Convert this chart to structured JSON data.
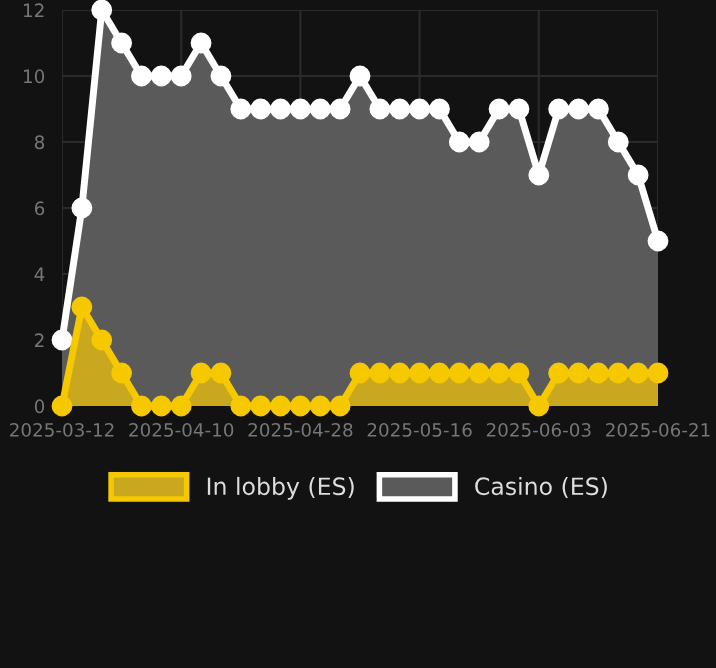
{
  "chart_data": {
    "type": "area",
    "categories": [
      "2025-03-12",
      null,
      null,
      null,
      null,
      null,
      "2025-04-10",
      null,
      null,
      null,
      null,
      null,
      "2025-04-28",
      null,
      null,
      null,
      null,
      null,
      "2025-05-16",
      null,
      null,
      null,
      null,
      null,
      "2025-06-03",
      null,
      null,
      null,
      null,
      null,
      "2025-06-21"
    ],
    "series": [
      {
        "name": "Casino (ES)",
        "color": "#ffffff",
        "values": [
          2,
          6,
          12,
          11,
          10,
          10,
          10,
          11,
          10,
          9,
          9,
          9,
          9,
          9,
          9,
          10,
          9,
          9,
          9,
          9,
          8,
          8,
          9,
          9,
          7,
          9,
          9,
          9,
          8,
          7,
          5
        ]
      },
      {
        "name": "In lobby (ES)",
        "color": "#f5c800",
        "values": [
          0,
          3,
          2,
          1,
          0,
          0,
          0,
          1,
          1,
          0,
          0,
          0,
          0,
          0,
          0,
          1,
          1,
          1,
          1,
          1,
          1,
          1,
          1,
          1,
          0,
          1,
          1,
          1,
          1,
          1,
          1
        ]
      }
    ],
    "ylim": [
      0,
      12
    ],
    "yticks": [
      0,
      2,
      4,
      6,
      8,
      10,
      12
    ],
    "grid": true,
    "legend": "bottom",
    "marker": "circle",
    "line_style": "solid"
  }
}
